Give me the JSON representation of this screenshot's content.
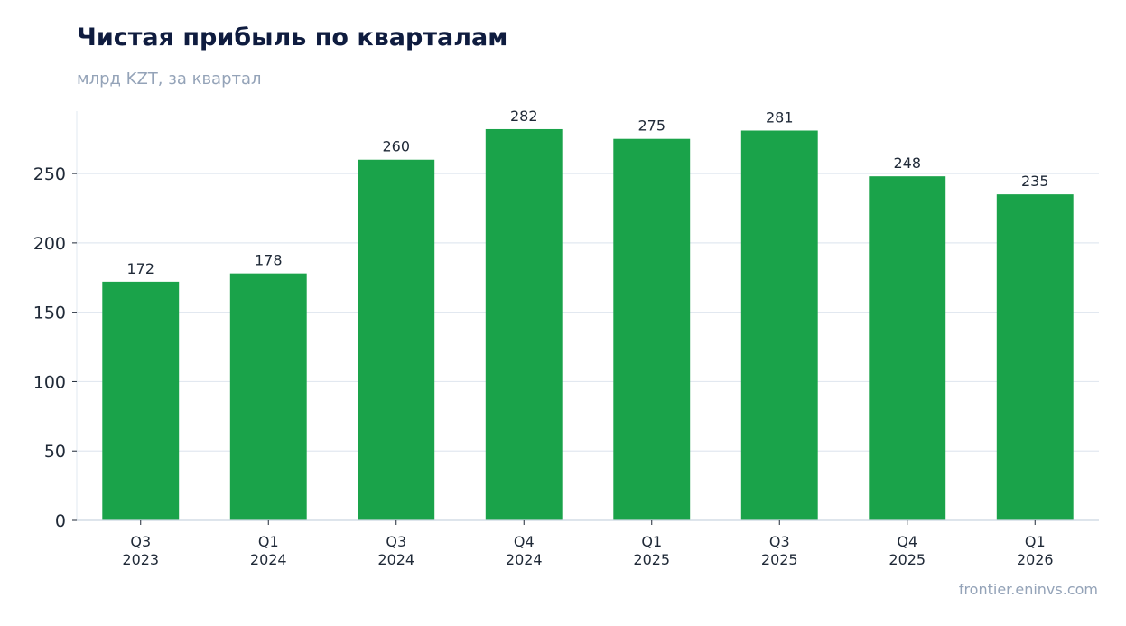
{
  "header": {
    "title": "Чистая прибыль по кварталам",
    "subtitle": "млрд KZT, за квартал"
  },
  "footer": {
    "source": "frontier.eninvs.com"
  },
  "chart_data": {
    "type": "bar",
    "categories": [
      [
        "Q3",
        "2023"
      ],
      [
        "Q1",
        "2024"
      ],
      [
        "Q3",
        "2024"
      ],
      [
        "Q4",
        "2024"
      ],
      [
        "Q1",
        "2025"
      ],
      [
        "Q3",
        "2025"
      ],
      [
        "Q4",
        "2025"
      ],
      [
        "Q1",
        "2026"
      ]
    ],
    "values": [
      172,
      178,
      260,
      282,
      275,
      281,
      248,
      235
    ],
    "data_labels": [
      "172",
      "178",
      "260",
      "282",
      "275",
      "281",
      "248",
      "235"
    ],
    "ylim": [
      0,
      295
    ],
    "yticks": [
      0,
      50,
      100,
      150,
      200,
      250
    ],
    "grid": "horizontal",
    "bar_color": "#1aa34a",
    "grid_color": "#e2e8f0",
    "axis_color": "#cbd5e1"
  }
}
